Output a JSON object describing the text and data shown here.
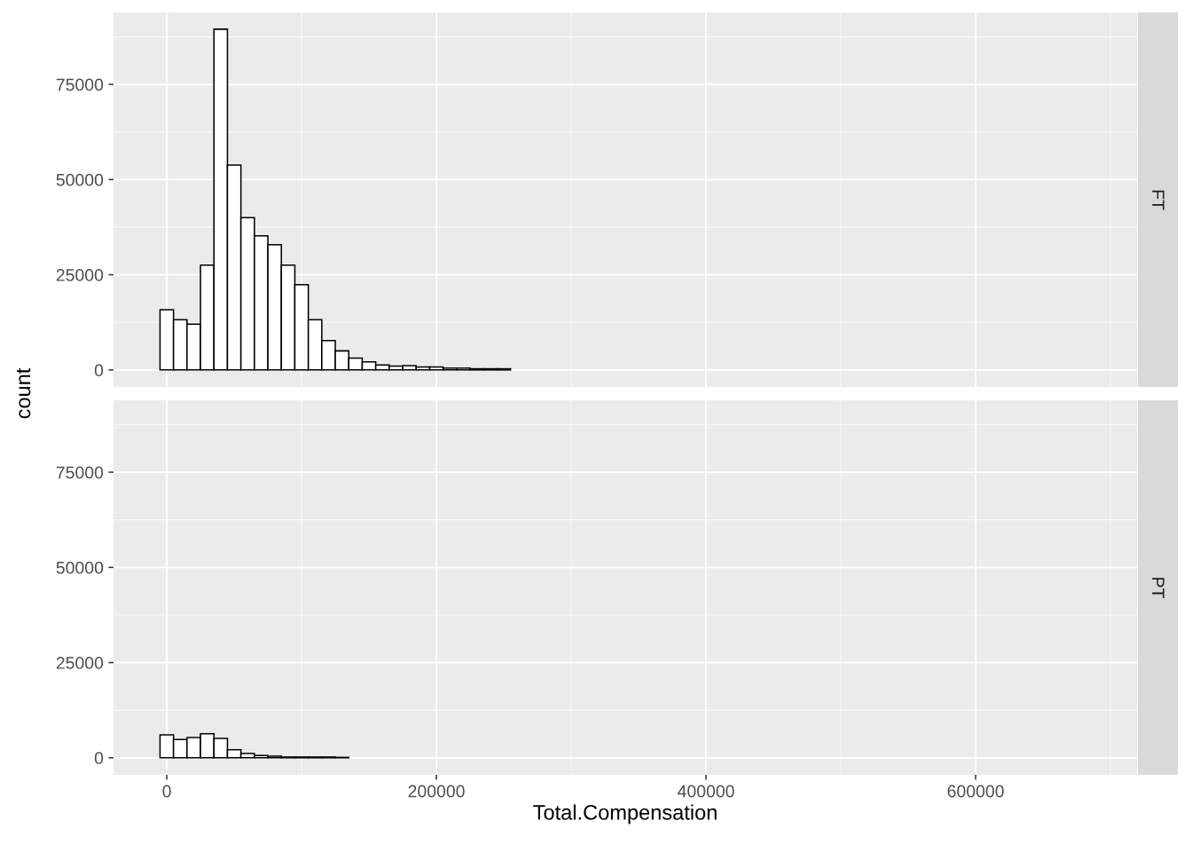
{
  "chart_data": [
    {
      "type": "histogram",
      "annotations": [
        "FT"
      ],
      "ylabel": "count",
      "bins": [
        -5000,
        5000,
        15000,
        25000,
        35000,
        45000,
        55000,
        65000,
        75000,
        85000,
        95000,
        105000,
        115000,
        125000,
        135000,
        145000,
        155000,
        165000,
        175000,
        185000,
        195000,
        205000,
        215000,
        225000,
        235000,
        245000,
        255000,
        265000,
        275000,
        285000,
        295000,
        305000,
        315000,
        325000,
        335000,
        345000,
        355000,
        365000,
        375000,
        385000,
        395000,
        405000,
        415000,
        425000,
        435000,
        445000,
        455000,
        465000,
        475000,
        485000,
        495000,
        505000,
        515000,
        525000,
        535000,
        545000,
        555000,
        565000,
        575000,
        585000,
        595000,
        605000,
        615000,
        625000,
        635000,
        645000,
        655000,
        665000,
        675000,
        685000
      ],
      "values": [
        15800,
        13200,
        12000,
        27500,
        89500,
        53800,
        40000,
        35200,
        32900,
        27500,
        22400,
        13200,
        7700,
        5000,
        3100,
        2100,
        1300,
        1000,
        1100,
        800,
        800,
        500,
        500,
        300,
        300,
        300,
        0,
        0,
        0,
        0,
        0,
        0,
        0,
        0,
        0,
        0,
        0,
        0,
        0,
        0,
        0,
        0,
        0,
        0,
        0,
        0,
        0,
        0,
        0,
        0,
        0,
        0,
        0,
        0,
        0,
        0,
        0,
        0,
        0,
        0,
        0,
        0,
        0,
        0,
        0,
        0,
        0,
        0,
        0
      ],
      "color": "#ffffff",
      "xlim": [
        -39500,
        719700
      ],
      "xticks": [
        0,
        200000,
        400000,
        600000
      ],
      "ylim": [
        -4470,
        93900
      ],
      "yticks": [
        0,
        25000,
        50000,
        75000
      ],
      "grid": true,
      "tick_labels": "y"
    },
    {
      "type": "histogram",
      "annotations": [
        "PT"
      ],
      "xlabel": "Total.Compensation",
      "bins": [
        -5000,
        5000,
        15000,
        25000,
        35000,
        45000,
        55000,
        65000,
        75000,
        85000,
        95000,
        105000,
        115000,
        125000,
        135000,
        145000,
        155000,
        165000,
        175000,
        185000,
        195000,
        205000,
        215000,
        225000,
        235000,
        245000,
        255000,
        265000,
        275000,
        285000,
        295000,
        305000,
        315000,
        325000,
        335000,
        345000,
        355000,
        365000,
        375000,
        385000,
        395000,
        405000,
        415000,
        425000,
        435000,
        445000,
        455000,
        465000,
        475000,
        485000,
        495000,
        505000,
        515000,
        525000,
        535000,
        545000,
        555000,
        565000,
        575000,
        585000,
        595000,
        605000,
        615000,
        625000,
        635000,
        645000,
        655000,
        665000,
        675000,
        685000
      ],
      "values": [
        6000,
        4800,
        5300,
        6300,
        5100,
        2100,
        1100,
        600,
        400,
        200,
        200,
        200,
        200,
        100,
        0,
        0,
        0,
        0,
        0,
        0,
        0,
        0,
        0,
        0,
        0,
        0,
        0,
        0,
        0,
        0,
        0,
        0,
        0,
        0,
        0,
        0,
        0,
        0,
        0,
        0,
        0,
        0,
        0,
        0,
        0,
        0,
        0,
        0,
        0,
        0,
        0,
        0,
        0,
        0,
        0,
        0,
        0,
        0,
        0,
        0,
        0,
        0,
        0,
        0,
        0,
        0,
        0,
        0,
        0
      ],
      "color": "#ffffff",
      "xlim": [
        -39500,
        719700
      ],
      "xticks": [
        0,
        200000,
        400000,
        600000
      ],
      "ylim": [
        -4470,
        93900
      ],
      "yticks": [
        0,
        25000,
        50000,
        75000
      ],
      "grid": true
    }
  ]
}
